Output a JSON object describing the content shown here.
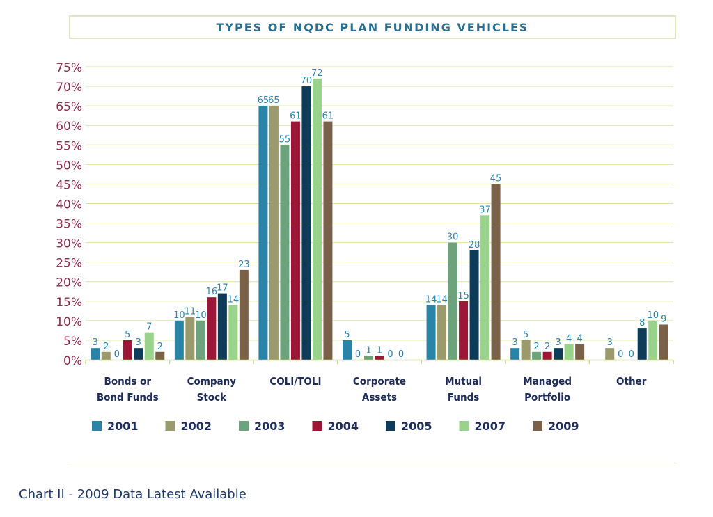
{
  "chart_data": {
    "type": "bar",
    "title": "TYPES OF NQDC PLAN FUNDING VEHICLES",
    "categories": [
      [
        "Bonds or",
        "Bond Funds"
      ],
      [
        "Company",
        "Stock"
      ],
      [
        "COLI/TOLI"
      ],
      [
        "Corporate",
        "Assets"
      ],
      [
        "Mutual",
        "Funds"
      ],
      [
        "Managed",
        "Portfolio"
      ],
      [
        "Other"
      ]
    ],
    "ylim": [
      0,
      75
    ],
    "yticks": [
      "0%",
      "5%",
      "10%",
      "15%",
      "20%",
      "25%",
      "30%",
      "35%",
      "40%",
      "45%",
      "50%",
      "55%",
      "60%",
      "65%",
      "70%",
      "75%"
    ],
    "grid": true,
    "legend_position": "bottom",
    "series": [
      {
        "name": "2001",
        "color": "#2a84a8",
        "values": [
          3,
          10,
          65,
          5,
          14,
          3,
          null
        ],
        "labels": [
          "3",
          "10",
          "65",
          "5",
          "14",
          "3",
          ""
        ]
      },
      {
        "name": "2002",
        "color": "#9a9a6c",
        "values": [
          2,
          11,
          65,
          0,
          14,
          5,
          3
        ],
        "labels": [
          "2",
          "11",
          "65",
          "0",
          "14",
          "5",
          "3"
        ]
      },
      {
        "name": "2003",
        "color": "#6da37c",
        "values": [
          0,
          10,
          55,
          1,
          30,
          2,
          0
        ],
        "labels": [
          "0",
          "10",
          "55",
          "1",
          "30",
          "2",
          "0"
        ]
      },
      {
        "name": "2004",
        "color": "#9c1638",
        "values": [
          5,
          16,
          61,
          1,
          15,
          2,
          0
        ],
        "labels": [
          "5",
          "16",
          "61",
          "1",
          "15",
          "2",
          "0"
        ]
      },
      {
        "name": "2005",
        "color": "#0e3b57",
        "values": [
          3,
          17,
          70,
          0,
          28,
          3,
          8
        ],
        "labels": [
          "3",
          "17",
          "70",
          "0",
          "28",
          "3",
          "8"
        ]
      },
      {
        "name": "2007",
        "color": "#99d38b",
        "values": [
          7,
          14,
          72,
          0,
          37,
          4,
          10
        ],
        "labels": [
          "7",
          "14",
          "72",
          "0",
          "37",
          "4",
          "10"
        ]
      },
      {
        "name": "2009",
        "color": "#7a6149",
        "values": [
          2,
          23,
          61,
          null,
          45,
          4,
          9
        ],
        "labels": [
          "2",
          "23",
          "61",
          "",
          "45",
          "4",
          "9"
        ]
      }
    ]
  },
  "caption": "Chart II  - 2009 Data Latest Available"
}
